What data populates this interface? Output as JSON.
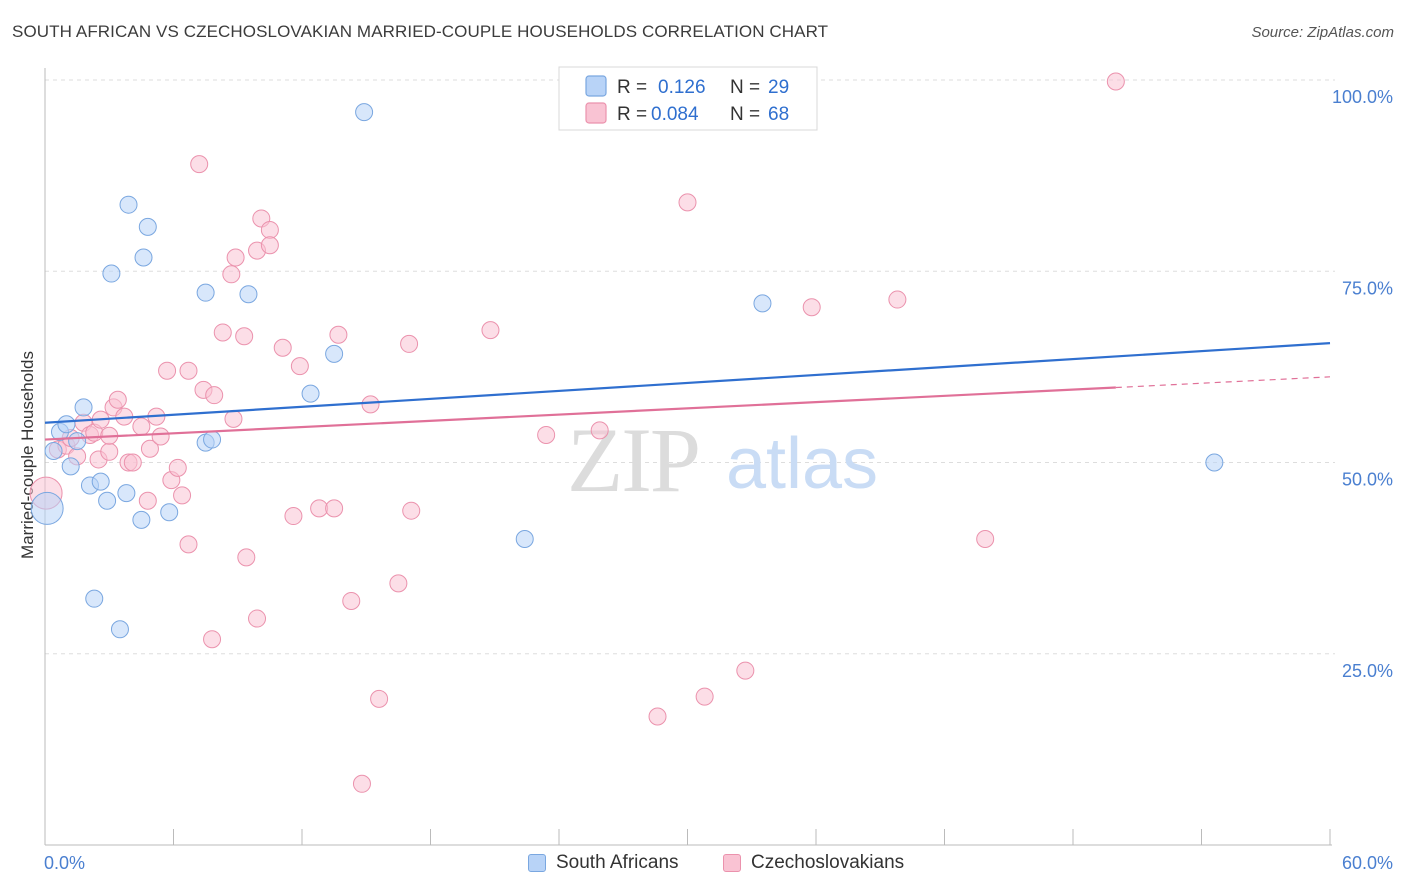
{
  "header": {
    "title": "SOUTH AFRICAN VS CZECHOSLOVAKIAN MARRIED-COUPLE HOUSEHOLDS CORRELATION CHART",
    "source": "Source: ZipAtlas.com"
  },
  "watermark": {
    "zip": "ZIP",
    "atlas": "atlas"
  },
  "legend_top": {
    "items": [
      {
        "r_label": "R =",
        "r_value": "0.126",
        "n_label": "N =",
        "n_value": "29"
      },
      {
        "r_label": "R =",
        "r_value": "0.084",
        "n_label": "N =",
        "n_value": "68"
      }
    ]
  },
  "legend_bottom": {
    "items": [
      {
        "label": "South Africans"
      },
      {
        "label": "Czechoslovakians"
      }
    ]
  },
  "chart_data": {
    "type": "scatter",
    "title": "SOUTH AFRICAN VS CZECHOSLOVAKIAN MARRIED-COUPLE HOUSEHOLDS CORRELATION CHART",
    "xlabel": "",
    "ylabel": "Married-couple Households",
    "xlim": [
      0,
      60
    ],
    "ylim": [
      0,
      100
    ],
    "x_tick_labels": [
      "0.0%",
      "60.0%"
    ],
    "y_ticks": [
      25,
      50,
      75,
      100
    ],
    "y_tick_labels": [
      "25.0%",
      "50.0%",
      "75.0%",
      "100.0%"
    ],
    "grid": true,
    "legend_position": "top-center",
    "colors": {
      "south_africans_fill": "#b8d3f7",
      "south_africans_stroke": "#7aa7e0",
      "south_africans_line": "#2f6fcf",
      "czech_fill": "#f9c3d3",
      "czech_stroke": "#eb92ad",
      "czech_line": "#e07098",
      "axis_text": "#4a7fd0"
    },
    "series": [
      {
        "name": "South Africans",
        "r": 0.126,
        "n": 29,
        "trend": {
          "x": [
            0,
            60
          ],
          "y": [
            55.2,
            65.6
          ]
        },
        "points": [
          [
            0.1,
            44.0,
            26
          ],
          [
            0.4,
            51.5,
            9
          ],
          [
            0.7,
            54.0,
            9
          ],
          [
            1.0,
            55.0,
            9
          ],
          [
            1.2,
            49.5,
            9
          ],
          [
            1.5,
            52.8,
            9
          ],
          [
            1.8,
            57.2,
            9
          ],
          [
            2.1,
            47.0,
            9
          ],
          [
            2.6,
            47.5,
            9
          ],
          [
            2.9,
            45.0,
            9
          ],
          [
            3.1,
            74.7,
            9
          ],
          [
            3.8,
            46.0,
            9
          ],
          [
            3.9,
            83.7,
            9
          ],
          [
            4.5,
            42.5,
            9
          ],
          [
            4.6,
            76.8,
            9
          ],
          [
            4.8,
            80.8,
            9
          ],
          [
            5.8,
            43.5,
            9
          ],
          [
            7.5,
            52.6,
            9
          ],
          [
            7.5,
            72.2,
            9
          ],
          [
            7.8,
            53.0,
            9
          ],
          [
            9.5,
            72.0,
            9
          ],
          [
            12.4,
            59.0,
            9
          ],
          [
            13.5,
            64.2,
            9
          ],
          [
            14.9,
            95.8,
            9
          ],
          [
            22.4,
            40.0,
            9
          ],
          [
            33.5,
            70.8,
            9
          ],
          [
            54.6,
            50.0,
            9
          ],
          [
            2.3,
            32.2,
            9
          ],
          [
            3.5,
            28.2,
            9
          ]
        ]
      },
      {
        "name": "Czechoslovakians",
        "r": 0.084,
        "n": 68,
        "trend": {
          "x": [
            0,
            50
          ],
          "y": [
            53.0,
            59.8
          ]
        },
        "trend_dashed": {
          "x": [
            50,
            60
          ],
          "y": [
            59.8,
            61.2
          ]
        },
        "points": [
          [
            0.05,
            46.0,
            28
          ],
          [
            0.6,
            51.7,
            9
          ],
          [
            1.0,
            52.2,
            9
          ],
          [
            1.2,
            53.2,
            9
          ],
          [
            1.5,
            50.8,
            9
          ],
          [
            1.8,
            55.2,
            9
          ],
          [
            2.1,
            53.6,
            9
          ],
          [
            2.3,
            53.9,
            9
          ],
          [
            2.5,
            50.4,
            9
          ],
          [
            2.6,
            55.6,
            9
          ],
          [
            3.0,
            51.4,
            9
          ],
          [
            3.2,
            57.2,
            9
          ],
          [
            3.4,
            58.2,
            9
          ],
          [
            3.7,
            56.0,
            9
          ],
          [
            3.9,
            50.0,
            9
          ],
          [
            4.1,
            50.0,
            9
          ],
          [
            4.5,
            54.7,
            9
          ],
          [
            4.8,
            45.0,
            9
          ],
          [
            4.9,
            51.8,
            9
          ],
          [
            5.2,
            56.0,
            9
          ],
          [
            5.4,
            53.4,
            9
          ],
          [
            5.7,
            62.0,
            9
          ],
          [
            5.9,
            47.7,
            9
          ],
          [
            6.2,
            49.3,
            9
          ],
          [
            6.4,
            45.7,
            9
          ],
          [
            6.7,
            39.3,
            9
          ],
          [
            6.7,
            62.0,
            9
          ],
          [
            7.2,
            89.0,
            9
          ],
          [
            7.4,
            59.5,
            9
          ],
          [
            7.8,
            26.9,
            9
          ],
          [
            7.9,
            58.8,
            9
          ],
          [
            8.3,
            67.0,
            9
          ],
          [
            8.7,
            74.6,
            9
          ],
          [
            8.8,
            55.7,
            9
          ],
          [
            8.9,
            76.8,
            9
          ],
          [
            9.3,
            66.5,
            9
          ],
          [
            9.4,
            37.6,
            9
          ],
          [
            9.9,
            29.6,
            9
          ],
          [
            9.9,
            77.7,
            9
          ],
          [
            10.1,
            81.9,
            9
          ],
          [
            10.5,
            80.4,
            9
          ],
          [
            10.5,
            78.4,
            9
          ],
          [
            11.1,
            65.0,
            9
          ],
          [
            11.6,
            43.0,
            9
          ],
          [
            11.9,
            62.6,
            9
          ],
          [
            12.8,
            44.0,
            9
          ],
          [
            13.5,
            44.0,
            9
          ],
          [
            13.7,
            66.7,
            9
          ],
          [
            14.3,
            31.9,
            9
          ],
          [
            14.8,
            8.0,
            9
          ],
          [
            15.2,
            57.6,
            9
          ],
          [
            15.6,
            19.1,
            9
          ],
          [
            16.5,
            34.2,
            9
          ],
          [
            17.0,
            65.5,
            9
          ],
          [
            17.1,
            43.7,
            9
          ],
          [
            20.8,
            67.3,
            9
          ],
          [
            23.4,
            53.6,
            9
          ],
          [
            24.7,
            99.8,
            9
          ],
          [
            25.9,
            54.2,
            9
          ],
          [
            28.6,
            16.8,
            9
          ],
          [
            30.0,
            84.0,
            9
          ],
          [
            30.8,
            19.4,
            9
          ],
          [
            32.7,
            22.8,
            9
          ],
          [
            35.8,
            70.3,
            9
          ],
          [
            39.8,
            71.3,
            9
          ],
          [
            43.9,
            40.0,
            9
          ],
          [
            50.0,
            99.8,
            9
          ],
          [
            3.0,
            53.5,
            9
          ]
        ]
      }
    ]
  }
}
